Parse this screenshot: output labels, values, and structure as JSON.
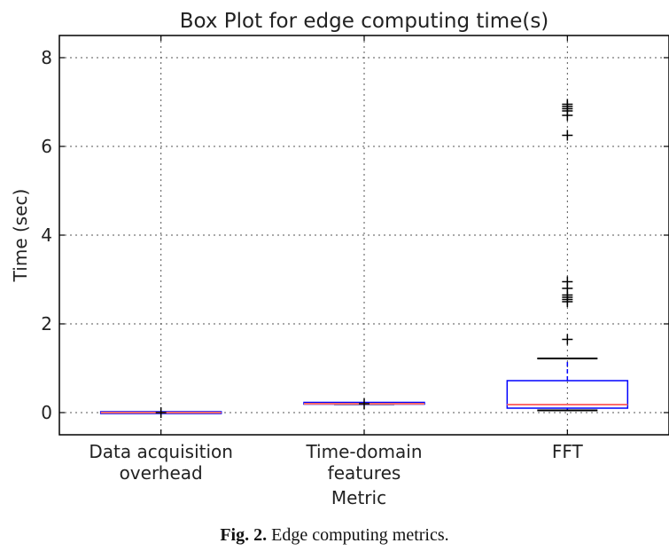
{
  "chart_data": {
    "type": "box",
    "title": "Box Plot for edge computing time(s)",
    "xlabel": "Metric",
    "ylabel": "Time (sec)",
    "ylim": [
      -0.5,
      8.5
    ],
    "yticks": [
      0,
      2,
      4,
      6,
      8
    ],
    "grid": true,
    "categories": [
      [
        "Data acquisition",
        "overhead"
      ],
      [
        "Time-domain",
        "features"
      ],
      [
        "FFT"
      ]
    ],
    "boxes": [
      {
        "q1": 0.0,
        "median": 0.0,
        "q3": 0.0,
        "whisker_low": 0.0,
        "whisker_high": 0.0,
        "outliers": [
          0.0
        ]
      },
      {
        "q1": 0.19,
        "median": 0.2,
        "q3": 0.21,
        "whisker_low": 0.19,
        "whisker_high": 0.21,
        "outliers": [
          0.2
        ]
      },
      {
        "q1": 0.1,
        "median": 0.18,
        "q3": 0.72,
        "whisker_low": 0.05,
        "whisker_high": 1.22,
        "outliers": [
          1.65,
          2.5,
          2.55,
          2.6,
          2.65,
          2.8,
          2.95,
          6.25,
          6.7,
          6.8,
          6.85,
          6.9,
          6.95
        ]
      }
    ],
    "colors": {
      "box": "#0000ff",
      "median": "#ff6b6b",
      "whisker": "#000000",
      "outlier": "#000000"
    }
  },
  "caption": {
    "label": "Fig. 2.",
    "text": "Edge computing metrics."
  }
}
